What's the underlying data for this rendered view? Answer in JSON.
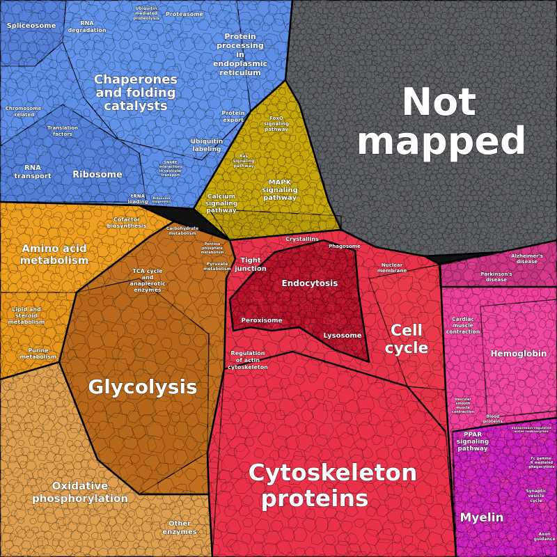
{
  "groups": [
    {
      "id": "grey",
      "color": "#5e6065"
    },
    {
      "id": "blue",
      "color": "#5f8fe8"
    },
    {
      "id": "yellow",
      "color": "#c8a80a"
    },
    {
      "id": "orange",
      "color": "#f0a020"
    },
    {
      "id": "brown",
      "color": "#c0701f"
    },
    {
      "id": "tan",
      "color": "#e0a050"
    },
    {
      "id": "red",
      "color": "#e8334a"
    },
    {
      "id": "darkred",
      "color": "#b8102a"
    },
    {
      "id": "pink",
      "color": "#f0409a"
    },
    {
      "id": "magenta",
      "color": "#d020c8"
    }
  ],
  "labels": {
    "not_mapped_1": "Not",
    "not_mapped_2": "mapped",
    "spliceosome": "Spliceosome",
    "rna_degradation_1": "RNA",
    "rna_degradation_2": "degradation",
    "ubiquitin_proteolysis_1": "Ubiquitin",
    "ubiquitin_proteolysis_2": "mediated",
    "ubiquitin_proteolysis_3": "proteolysis",
    "proteasome": "Proteasome",
    "protein_processing_1": "Protein",
    "protein_processing_2": "processing",
    "protein_processing_3": "in",
    "protein_processing_4": "endoplasmic",
    "protein_processing_5": "reticulum",
    "chaperones_1": "Chaperones",
    "chaperones_2": "and folding",
    "chaperones_3": "catalysts",
    "chromosome_1": "Chromosome-",
    "chromosome_2": "related",
    "translation_1": "Translation",
    "translation_2": "factors",
    "protein_export_1": "Protein",
    "protein_export_2": "export",
    "ubiquitin_labeling_1": "Ubiquitin",
    "ubiquitin_labeling_2": "labeling",
    "snare_1": "SNARE",
    "snare_2": "interactions",
    "snare_3": "in vesicular",
    "snare_4": "transport",
    "rna_transport_1": "RNA",
    "rna_transport_2": "transport",
    "ribosome": "Ribosome",
    "trna_1": "tRNA",
    "trna_2": "loading",
    "ribosome_biogenesis_1": "Ribosome",
    "ribosome_biogenesis_2": "biogenesis",
    "foxo_1": "FoxO",
    "foxo_2": "signaling",
    "foxo_3": "pathway",
    "ras_1": "Ras",
    "ras_2": "signaling",
    "ras_3": "pathway",
    "mapk_1": "MAPK",
    "mapk_2": "signaling",
    "mapk_3": "pathway",
    "calcium_1": "Calcium",
    "calcium_2": "signaling",
    "calcium_3": "pathway",
    "amino_acid_1": "Amino acid",
    "amino_acid_2": "metabolism",
    "cofactor_1": "Cofactor",
    "cofactor_2": "biosynthesis",
    "carbohydrate_1": "Carbohydrate",
    "carbohydrate_2": "metabolism",
    "pentose_1": "Pentose",
    "pentose_2": "phosphate",
    "pentose_3": "metabolism",
    "pyruvate_1": "Pyruvate",
    "pyruvate_2": "metabolism",
    "tca_1": "TCA cycle",
    "tca_2": "and",
    "tca_3": "anaplerotic",
    "tca_4": "enzymes",
    "lipid_1": "Lipid and",
    "lipid_2": "steroid",
    "lipid_3": "metabolism",
    "purine_1": "Purine",
    "purine_2": "metabolism",
    "glycolysis": "Glycolysis",
    "oxphos_1": "Oxidative",
    "oxphos_2": "phosphorylation",
    "other_enzymes_1": "Other",
    "other_enzymes_2": "enzymes",
    "crystallins": "Crystallins",
    "phagosome": "Phagosome",
    "tight_junction_1": "Tight",
    "tight_junction_2": "junction",
    "nuclear_membrane_1": "Nuclear",
    "nuclear_membrane_2": "membrane",
    "endocytosis": "Endocytosis",
    "peroxisome": "Peroxisome",
    "lysosome": "Lysosome",
    "cell_cycle_1": "Cell",
    "cell_cycle_2": "cycle",
    "regulation_actin_1": "Regulation",
    "regulation_actin_2": "of actin",
    "regulation_actin_3": "cytoskeleton",
    "cytoskeleton_1": "Cytoskeleton",
    "cytoskeleton_2": "proteins",
    "alzheimers_1": "Alzheimer's",
    "alzheimers_2": "disease",
    "parkinsons_1": "Parkinson's",
    "parkinsons_2": "disease",
    "cardiac_1": "Cardiac",
    "cardiac_2": "muscle",
    "cardiac_3": "contraction",
    "hemoglobin": "Hemoglobin",
    "vascular_1": "Vascular",
    "vascular_2": "smooth",
    "vascular_3": "muscle",
    "vascular_4": "contraction",
    "blood_1": "Blood",
    "blood_2": "proteins",
    "vasopressin_1": "Vasopressin-regulated",
    "vasopressin_2": "water reabsorption",
    "ppar_1": "PPAR",
    "ppar_2": "signaling",
    "ppar_3": "pathway",
    "fc_gamma_1": "Fc gamma-",
    "fc_gamma_2": "R mediated",
    "fc_gamma_3": "phagocytosis",
    "myelin": "Myelin",
    "synaptic_1": "Synaptic",
    "synaptic_2": "vesicle",
    "synaptic_3": "cycle",
    "axon_1": "Axon",
    "axon_2": "guidance"
  }
}
